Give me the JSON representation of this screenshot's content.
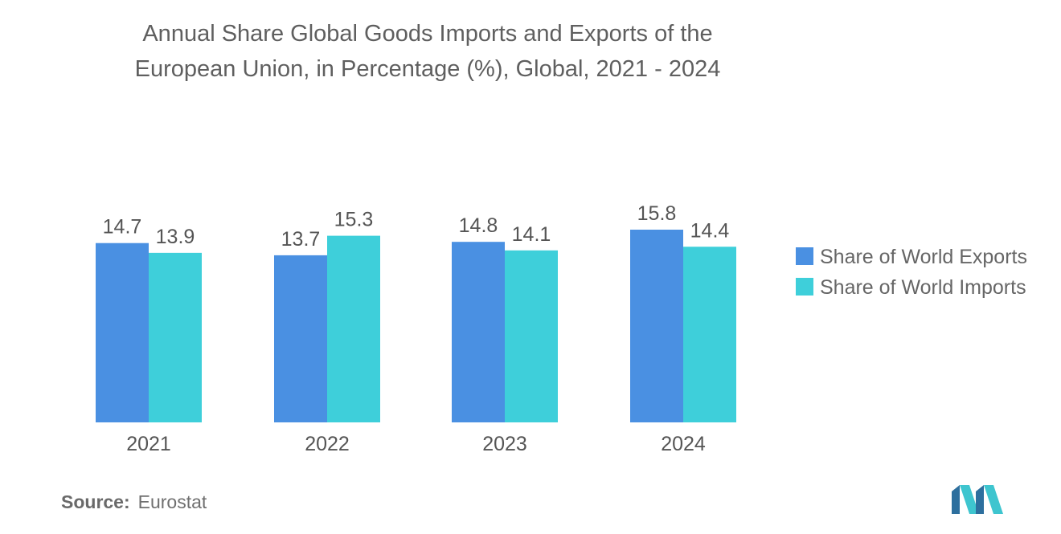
{
  "title_lines": [
    "Annual Share Global Goods Imports and Exports of the",
    "European Union, in Percentage (%), Global, 2021 - 2024"
  ],
  "source": {
    "label": "Source:",
    "value": "Eurostat"
  },
  "colors": {
    "exports": "#4a90e2",
    "imports": "#3ecfda",
    "text": "#555555"
  },
  "chart_data": {
    "type": "bar",
    "title": "Annual Share Global Goods Imports and Exports of the European Union, in Percentage (%), Global, 2021 - 2024",
    "categories": [
      "2021",
      "2022",
      "2023",
      "2024"
    ],
    "series": [
      {
        "name": "Share of World Exports",
        "values": [
          14.7,
          13.7,
          14.8,
          15.8
        ]
      },
      {
        "name": "Share of World Imports",
        "values": [
          13.9,
          15.3,
          14.1,
          14.4
        ]
      }
    ],
    "xlabel": "",
    "ylabel": "",
    "ylim": [
      0,
      15.8
    ],
    "grid": false,
    "legend": "right",
    "data_labels": true
  }
}
